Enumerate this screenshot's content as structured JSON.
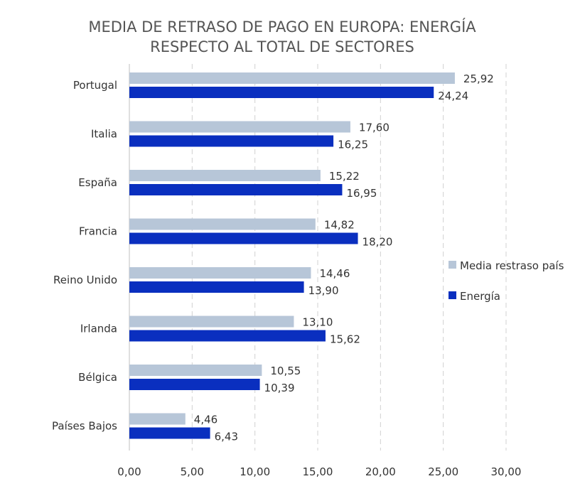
{
  "chart_data": {
    "type": "bar",
    "orientation": "horizontal",
    "title": [
      "MEDIA DE RETRASO DE PAGO EN EUROPA: ENERGÍA",
      "RESPECTO AL TOTAL DE SECTORES"
    ],
    "categories": [
      "Portugal",
      "Italia",
      "España",
      "Francia",
      "Reino Unido",
      "Irlanda",
      "Bélgica",
      "Países Bajos"
    ],
    "series": [
      {
        "name": "Media restraso país",
        "color": "#b7c6d8",
        "values": [
          25.92,
          17.6,
          15.22,
          14.82,
          14.46,
          13.1,
          10.55,
          4.46
        ],
        "labels": [
          "25,92",
          "17,60",
          "15,22",
          "14,82",
          "14,46",
          "13,10",
          "10,55",
          "4,46"
        ]
      },
      {
        "name": "Energía",
        "color": "#0a2fbf",
        "values": [
          24.24,
          16.25,
          16.95,
          18.2,
          13.9,
          15.62,
          10.39,
          6.43
        ],
        "labels": [
          "24,24",
          "16,25",
          "16,95",
          "18,20",
          "13,90",
          "15,62",
          "10,39",
          "6,43"
        ]
      }
    ],
    "xlim": [
      0,
      30
    ],
    "xticks": [
      0,
      5,
      10,
      15,
      20,
      25,
      30
    ],
    "xtick_labels": [
      "0,00",
      "5,00",
      "10,00",
      "15,00",
      "20,00",
      "25,00",
      "30,00"
    ],
    "grid": "vertical dashed",
    "legend": "right"
  }
}
